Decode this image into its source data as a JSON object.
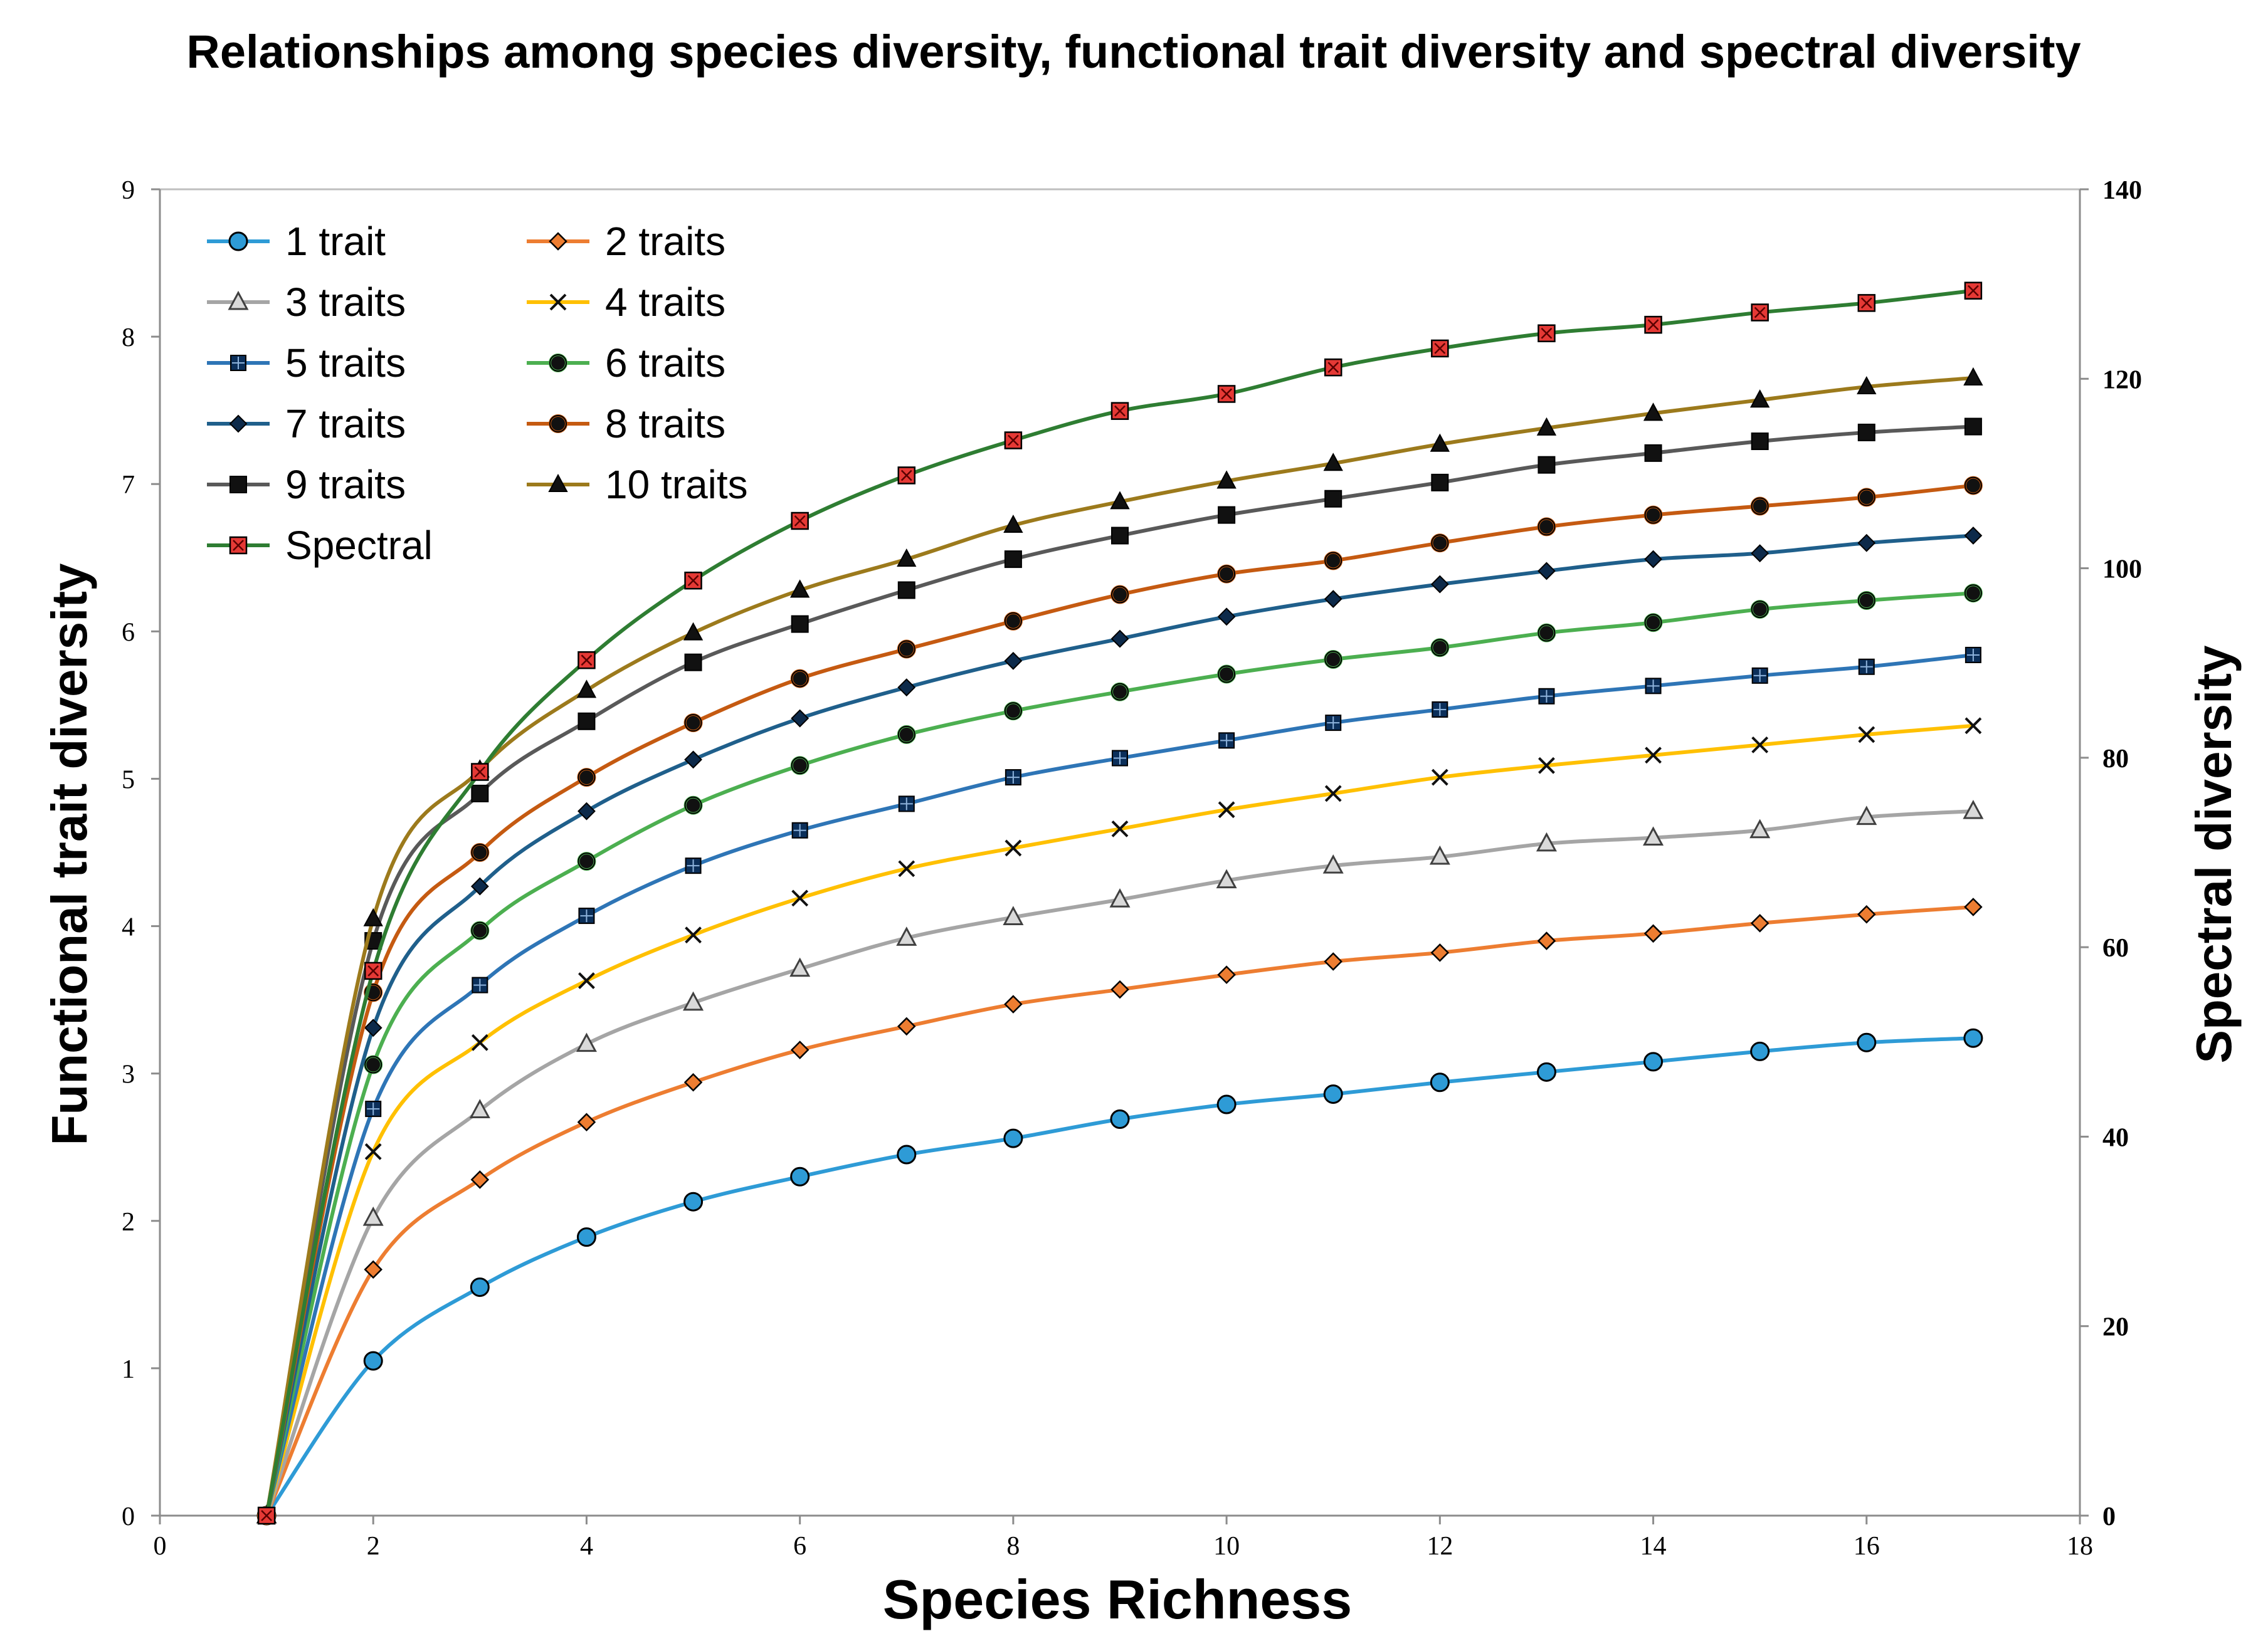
{
  "chart_data": {
    "type": "line",
    "title": "Relationships among species diversity, functional trait diversity and spectral diversity",
    "xlabel": "Species Richness",
    "ylabel": "Functional trait diversity",
    "y2label": "Spectral diversity",
    "xlim": [
      0,
      18
    ],
    "ylim": [
      0,
      9
    ],
    "y2lim": [
      0,
      140
    ],
    "xticks": [
      "0",
      "2",
      "4",
      "6",
      "8",
      "10",
      "12",
      "14",
      "16",
      "18"
    ],
    "yticks": [
      "0",
      "1",
      "2",
      "3",
      "4",
      "5",
      "6",
      "7",
      "8",
      "9"
    ],
    "y2ticks": [
      "0",
      "20",
      "40",
      "60",
      "80",
      "100",
      "120",
      "140"
    ],
    "grid": false,
    "legend_position": "top-left",
    "x": [
      1,
      2,
      3,
      4,
      5,
      6,
      7,
      8,
      9,
      10,
      11,
      12,
      13,
      14,
      15,
      16,
      17
    ],
    "series": [
      {
        "name": "1 trait",
        "axis": "left",
        "color": "#2E9BD6",
        "marker": "circle",
        "values": [
          0,
          1.05,
          1.55,
          1.89,
          2.13,
          2.3,
          2.45,
          2.56,
          2.69,
          2.79,
          2.86,
          2.94,
          3.01,
          3.08,
          3.15,
          3.21,
          3.24
        ]
      },
      {
        "name": "2 traits",
        "axis": "left",
        "color": "#ED7D31",
        "marker": "diamond",
        "values": [
          0,
          1.67,
          2.28,
          2.67,
          2.94,
          3.16,
          3.32,
          3.47,
          3.57,
          3.67,
          3.76,
          3.82,
          3.9,
          3.95,
          4.02,
          4.08,
          4.13
        ]
      },
      {
        "name": "3 traits",
        "axis": "left",
        "color": "#A5A5A5",
        "marker": "triangle-open",
        "values": [
          0,
          2.02,
          2.75,
          3.2,
          3.48,
          3.71,
          3.92,
          4.06,
          4.18,
          4.31,
          4.41,
          4.47,
          4.56,
          4.6,
          4.65,
          4.74,
          4.78
        ]
      },
      {
        "name": "4 traits",
        "axis": "left",
        "color": "#FFC000",
        "marker": "x",
        "values": [
          0,
          2.47,
          3.21,
          3.63,
          3.94,
          4.19,
          4.39,
          4.53,
          4.66,
          4.79,
          4.9,
          5.01,
          5.09,
          5.16,
          5.23,
          5.3,
          5.36
        ]
      },
      {
        "name": "5 traits",
        "axis": "left",
        "color": "#2E75B6",
        "marker": "square",
        "values": [
          0,
          2.76,
          3.6,
          4.07,
          4.41,
          4.65,
          4.83,
          5.01,
          5.14,
          5.26,
          5.38,
          5.47,
          5.56,
          5.63,
          5.7,
          5.76,
          5.84
        ]
      },
      {
        "name": "6 traits",
        "axis": "left",
        "color": "#4CAF50",
        "marker": "circle-dark",
        "values": [
          0,
          3.06,
          3.97,
          4.44,
          4.82,
          5.09,
          5.3,
          5.46,
          5.59,
          5.71,
          5.81,
          5.89,
          5.99,
          6.06,
          6.15,
          6.21,
          6.26
        ]
      },
      {
        "name": "7 traits",
        "axis": "left",
        "color": "#1F5F8B",
        "marker": "diamond-dark",
        "values": [
          0,
          3.31,
          4.27,
          4.78,
          5.13,
          5.41,
          5.62,
          5.8,
          5.95,
          6.1,
          6.22,
          6.32,
          6.41,
          6.49,
          6.53,
          6.6,
          6.65
        ]
      },
      {
        "name": "8 traits",
        "axis": "left",
        "color": "#C55A11",
        "marker": "circle-dark",
        "values": [
          0,
          3.55,
          4.5,
          5.01,
          5.38,
          5.68,
          5.88,
          6.07,
          6.25,
          6.39,
          6.48,
          6.6,
          6.71,
          6.79,
          6.85,
          6.91,
          6.99
        ]
      },
      {
        "name": "9 traits",
        "axis": "left",
        "color": "#595959",
        "marker": "square-dark",
        "values": [
          0,
          3.9,
          4.9,
          5.39,
          5.79,
          6.05,
          6.28,
          6.49,
          6.65,
          6.79,
          6.9,
          7.01,
          7.13,
          7.21,
          7.29,
          7.35,
          7.39
        ]
      },
      {
        "name": "10 traits",
        "axis": "left",
        "color": "#9C7A1C",
        "marker": "triangle-dark",
        "values": [
          0,
          4.05,
          5.06,
          5.6,
          5.99,
          6.28,
          6.49,
          6.72,
          6.88,
          7.02,
          7.14,
          7.27,
          7.38,
          7.48,
          7.57,
          7.66,
          7.72
        ]
      },
      {
        "name": "Spectral",
        "axis": "right",
        "color": "#2E7D32",
        "marker": "square-red",
        "values": [
          0,
          57.5,
          78.5,
          90.3,
          98.7,
          105.0,
          109.8,
          113.5,
          116.6,
          118.4,
          121.2,
          123.2,
          124.8,
          125.7,
          127.0,
          128.0,
          129.3
        ]
      }
    ]
  }
}
